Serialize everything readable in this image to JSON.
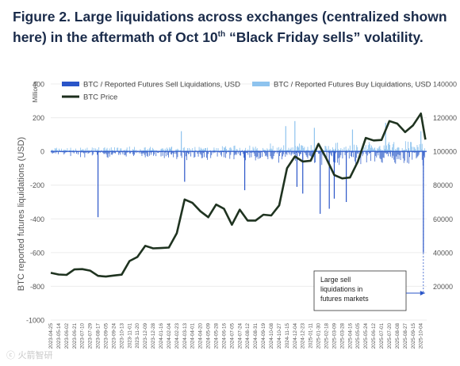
{
  "title": {
    "part1": "Figure 2. Large liquidations across exchanges (centralized shown here) in the aftermath of Oct 10",
    "sup": "th",
    "part2": " “Black Friday sells” volatility."
  },
  "watermark": "ⓒ 火箭智研",
  "chart_data": {
    "type": "bar+line",
    "y_left_label": "BTC reported futures liquidations (USD)",
    "y_left_unit": "Millions",
    "y_left_ticks": [
      "400",
      "200",
      "0",
      "-200",
      "-400",
      "-600",
      "-800",
      "-1000"
    ],
    "y_left_values": [
      400,
      200,
      0,
      -200,
      -400,
      -600,
      -800,
      -1000
    ],
    "y_left_range": [
      -1000,
      400
    ],
    "y_right_ticks": [
      "140000",
      "120000",
      "100000",
      "80000",
      "60000",
      "40000",
      "20000"
    ],
    "y_right_values": [
      140000,
      120000,
      100000,
      80000,
      60000,
      40000,
      20000
    ],
    "y_right_range": [
      0,
      140000
    ],
    "legend": [
      {
        "name": "BTC / Reported Futures Sell Liquidations, USD",
        "color": "#2a55c8",
        "kind": "bar"
      },
      {
        "name": "BTC / Reported Futures Buy Liquidations, USD",
        "color": "#8ec3ee",
        "kind": "bar"
      },
      {
        "name": "BTC Price",
        "color": "#1c2e1c",
        "kind": "line"
      }
    ],
    "x_ticks": [
      "2023-04-25",
      "2023-05-14",
      "2023-06-02",
      "2023-06-21",
      "2023-07-10",
      "2023-07-29",
      "2023-08-17",
      "2023-09-05",
      "2023-09-24",
      "2023-10-13",
      "2023-11-01",
      "2023-11-20",
      "2023-12-09",
      "2023-12-28",
      "2024-01-16",
      "2024-02-04",
      "2024-02-23",
      "2024-03-13",
      "2024-04-01",
      "2024-04-20",
      "2024-05-09",
      "2024-05-28",
      "2024-06-16",
      "2024-07-05",
      "2024-07-24",
      "2024-08-12",
      "2024-08-31",
      "2024-09-19",
      "2024-10-08",
      "2024-10-27",
      "2024-11-15",
      "2024-12-04",
      "2024-12-23",
      "2025-01-11",
      "2025-01-30",
      "2025-02-18",
      "2025-03-09",
      "2025-03-28",
      "2025-04-16",
      "2025-05-05",
      "2025-05-24",
      "2025-06-12",
      "2025-07-01",
      "2025-07-20",
      "2025-08-08",
      "2025-08-27",
      "2025-09-15",
      "2025-10-04"
    ],
    "price_series": [
      [
        "2023-04-25",
        28000
      ],
      [
        "2023-05-14",
        27000
      ],
      [
        "2023-06-02",
        26800
      ],
      [
        "2023-06-21",
        30000
      ],
      [
        "2023-07-10",
        30200
      ],
      [
        "2023-07-29",
        29300
      ],
      [
        "2023-08-17",
        26200
      ],
      [
        "2023-09-05",
        25800
      ],
      [
        "2023-09-24",
        26400
      ],
      [
        "2023-10-13",
        26900
      ],
      [
        "2023-11-01",
        35000
      ],
      [
        "2023-11-20",
        37400
      ],
      [
        "2023-12-09",
        44000
      ],
      [
        "2023-12-28",
        42500
      ],
      [
        "2024-01-16",
        42700
      ],
      [
        "2024-02-04",
        43000
      ],
      [
        "2024-02-23",
        51500
      ],
      [
        "2024-03-13",
        71500
      ],
      [
        "2024-04-01",
        69500
      ],
      [
        "2024-04-20",
        64500
      ],
      [
        "2024-05-09",
        61000
      ],
      [
        "2024-05-28",
        68500
      ],
      [
        "2024-06-16",
        66000
      ],
      [
        "2024-07-05",
        56500
      ],
      [
        "2024-07-24",
        65500
      ],
      [
        "2024-08-12",
        59000
      ],
      [
        "2024-08-31",
        59000
      ],
      [
        "2024-09-19",
        62500
      ],
      [
        "2024-10-08",
        62000
      ],
      [
        "2024-10-27",
        68000
      ],
      [
        "2024-11-15",
        90000
      ],
      [
        "2024-12-04",
        97000
      ],
      [
        "2024-12-23",
        94000
      ],
      [
        "2025-01-11",
        94500
      ],
      [
        "2025-01-30",
        104500
      ],
      [
        "2025-02-18",
        95800
      ],
      [
        "2025-03-09",
        86000
      ],
      [
        "2025-03-28",
        84000
      ],
      [
        "2025-04-16",
        84500
      ],
      [
        "2025-05-05",
        94000
      ],
      [
        "2025-05-24",
        108000
      ],
      [
        "2025-06-12",
        106500
      ],
      [
        "2025-07-01",
        106800
      ],
      [
        "2025-07-20",
        118000
      ],
      [
        "2025-08-08",
        116500
      ],
      [
        "2025-08-27",
        111500
      ],
      [
        "2025-09-15",
        115500
      ],
      [
        "2025-10-04",
        122500
      ],
      [
        "2025-10-15",
        107000
      ]
    ],
    "sell_liquidations_notable": [
      [
        "2023-08-17",
        -390
      ],
      [
        "2024-03-13",
        -180
      ],
      [
        "2024-08-05",
        -230
      ],
      [
        "2024-12-09",
        -210
      ],
      [
        "2024-12-23",
        -250
      ],
      [
        "2025-02-03",
        -370
      ],
      [
        "2025-02-25",
        -340
      ],
      [
        "2025-03-09",
        -280
      ],
      [
        "2025-04-07",
        -300
      ],
      [
        "2025-10-10",
        -600
      ]
    ],
    "buy_liquidations_notable": [
      [
        "2024-03-05",
        120
      ],
      [
        "2024-11-12",
        150
      ],
      [
        "2024-12-04",
        180
      ],
      [
        "2025-01-20",
        140
      ],
      [
        "2025-04-22",
        130
      ],
      [
        "2025-07-11",
        170
      ],
      [
        "2025-10-04",
        120
      ]
    ],
    "annotation": {
      "text": "Large sell\nliquidations in\nfutures markets",
      "x": "2025-10-10"
    }
  }
}
